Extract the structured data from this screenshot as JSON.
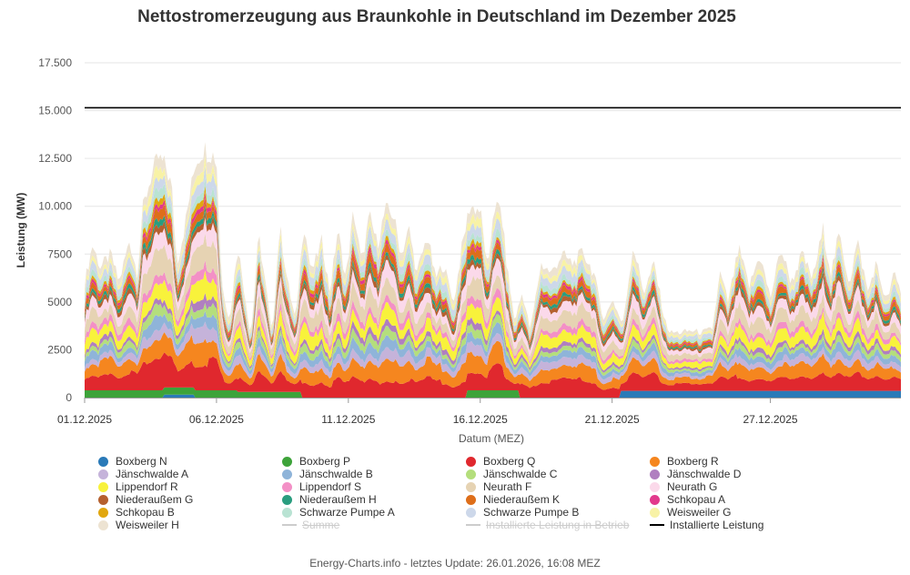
{
  "chart_data": {
    "type": "area",
    "title": "Nettostromerzeugung aus Braunkohle in Deutschland im Dezember 2025",
    "xlabel": "Datum (MEZ)",
    "ylabel": "Leistung (MW)",
    "ylim": [
      0,
      17500
    ],
    "yticks": [
      {
        "value": 0,
        "label": "0"
      },
      {
        "value": 2500,
        "label": "2500"
      },
      {
        "value": 5000,
        "label": "5000"
      },
      {
        "value": 7500,
        "label": "7500"
      },
      {
        "value": 10000,
        "label": "10.000"
      },
      {
        "value": 12500,
        "label": "12.500"
      },
      {
        "value": 15000,
        "label": "15.000"
      },
      {
        "value": 17500,
        "label": "17.500"
      }
    ],
    "xlim": [
      1,
      31.95
    ],
    "xticks": [
      {
        "value": 1,
        "label": "01.12.2025"
      },
      {
        "value": 6,
        "label": "06.12.2025"
      },
      {
        "value": 11,
        "label": "11.12.2025"
      },
      {
        "value": 16,
        "label": "16.12.2025"
      },
      {
        "value": 21,
        "label": "21.12.2025"
      },
      {
        "value": 27,
        "label": "27.12.2025"
      }
    ],
    "grid": true,
    "legend_position": "bottom",
    "installed_capacity": 15150,
    "total_profile": [
      {
        "x": 1.0,
        "y": 6000
      },
      {
        "x": 1.3,
        "y": 8000
      },
      {
        "x": 1.6,
        "y": 6800
      },
      {
        "x": 2.0,
        "y": 7500
      },
      {
        "x": 2.3,
        "y": 6000
      },
      {
        "x": 2.7,
        "y": 8200
      },
      {
        "x": 3.0,
        "y": 6500
      },
      {
        "x": 3.2,
        "y": 9800
      },
      {
        "x": 3.5,
        "y": 11500
      },
      {
        "x": 3.8,
        "y": 12500
      },
      {
        "x": 4.1,
        "y": 12000
      },
      {
        "x": 4.3,
        "y": 11000
      },
      {
        "x": 4.5,
        "y": 7000
      },
      {
        "x": 4.8,
        "y": 9000
      },
      {
        "x": 5.2,
        "y": 12300
      },
      {
        "x": 5.5,
        "y": 13000
      },
      {
        "x": 5.8,
        "y": 12800
      },
      {
        "x": 6.0,
        "y": 12500
      },
      {
        "x": 6.2,
        "y": 6000
      },
      {
        "x": 6.5,
        "y": 4000
      },
      {
        "x": 6.8,
        "y": 8000
      },
      {
        "x": 7.1,
        "y": 5200
      },
      {
        "x": 7.3,
        "y": 3200
      },
      {
        "x": 7.6,
        "y": 8500
      },
      {
        "x": 7.9,
        "y": 5500
      },
      {
        "x": 8.1,
        "y": 3300
      },
      {
        "x": 8.4,
        "y": 9000
      },
      {
        "x": 8.7,
        "y": 6000
      },
      {
        "x": 9.0,
        "y": 4000
      },
      {
        "x": 9.3,
        "y": 9200
      },
      {
        "x": 9.6,
        "y": 6500
      },
      {
        "x": 10.0,
        "y": 8200
      },
      {
        "x": 10.3,
        "y": 5500
      },
      {
        "x": 10.6,
        "y": 8800
      },
      {
        "x": 10.9,
        "y": 6200
      },
      {
        "x": 11.2,
        "y": 9800
      },
      {
        "x": 11.5,
        "y": 7000
      },
      {
        "x": 11.8,
        "y": 9500
      },
      {
        "x": 12.1,
        "y": 8000
      },
      {
        "x": 12.4,
        "y": 9800
      },
      {
        "x": 12.7,
        "y": 9600
      },
      {
        "x": 13.0,
        "y": 7500
      },
      {
        "x": 13.3,
        "y": 8800
      },
      {
        "x": 13.6,
        "y": 6500
      },
      {
        "x": 14.0,
        "y": 8500
      },
      {
        "x": 14.3,
        "y": 6200
      },
      {
        "x": 14.6,
        "y": 7000
      },
      {
        "x": 15.0,
        "y": 5000
      },
      {
        "x": 15.3,
        "y": 7800
      },
      {
        "x": 15.6,
        "y": 10000
      },
      {
        "x": 16.0,
        "y": 9800
      },
      {
        "x": 16.3,
        "y": 6500
      },
      {
        "x": 16.5,
        "y": 10000
      },
      {
        "x": 16.8,
        "y": 9800
      },
      {
        "x": 17.0,
        "y": 7000
      },
      {
        "x": 17.3,
        "y": 4000
      },
      {
        "x": 17.6,
        "y": 5500
      },
      {
        "x": 17.9,
        "y": 3500
      },
      {
        "x": 18.3,
        "y": 7000
      },
      {
        "x": 18.7,
        "y": 6500
      },
      {
        "x": 19.1,
        "y": 7500
      },
      {
        "x": 19.5,
        "y": 7000
      },
      {
        "x": 19.9,
        "y": 7600
      },
      {
        "x": 20.3,
        "y": 6500
      },
      {
        "x": 20.7,
        "y": 4000
      },
      {
        "x": 21.0,
        "y": 5200
      },
      {
        "x": 21.4,
        "y": 3800
      },
      {
        "x": 21.8,
        "y": 8000
      },
      {
        "x": 22.2,
        "y": 5500
      },
      {
        "x": 22.6,
        "y": 7000
      },
      {
        "x": 23.0,
        "y": 4000
      },
      {
        "x": 23.2,
        "y": 3400
      },
      {
        "x": 23.6,
        "y": 3400
      },
      {
        "x": 24.0,
        "y": 3500
      },
      {
        "x": 24.4,
        "y": 3400
      },
      {
        "x": 24.8,
        "y": 3600
      },
      {
        "x": 25.1,
        "y": 6500
      },
      {
        "x": 25.4,
        "y": 5000
      },
      {
        "x": 25.8,
        "y": 7800
      },
      {
        "x": 26.2,
        "y": 5800
      },
      {
        "x": 26.6,
        "y": 7500
      },
      {
        "x": 27.0,
        "y": 5200
      },
      {
        "x": 27.4,
        "y": 7800
      },
      {
        "x": 27.8,
        "y": 6000
      },
      {
        "x": 28.2,
        "y": 7500
      },
      {
        "x": 28.6,
        "y": 6200
      },
      {
        "x": 29.0,
        "y": 8800
      },
      {
        "x": 29.3,
        "y": 6500
      },
      {
        "x": 29.6,
        "y": 8500
      },
      {
        "x": 30.0,
        "y": 6000
      },
      {
        "x": 30.3,
        "y": 8200
      },
      {
        "x": 30.7,
        "y": 5500
      },
      {
        "x": 31.0,
        "y": 7000
      },
      {
        "x": 31.4,
        "y": 5000
      },
      {
        "x": 31.7,
        "y": 6500
      },
      {
        "x": 31.95,
        "y": 5500
      }
    ],
    "series": [
      {
        "name": "Boxberg N",
        "color": "#2a7ab8",
        "segments": [
          {
            "from": 4.0,
            "to": 5.2,
            "value": 150
          },
          {
            "from": 21.3,
            "to": 31.95,
            "value": 350
          }
        ]
      },
      {
        "name": "Boxberg P",
        "color": "#3da33a",
        "segments": [
          {
            "from": 1.0,
            "to": 6.8,
            "value": 380
          },
          {
            "from": 6.8,
            "to": 9.2,
            "value": 300
          },
          {
            "from": 15.5,
            "to": 17.5,
            "value": 380
          }
        ]
      },
      {
        "name": "Boxberg Q",
        "color": "#e0282e",
        "share": 0.12
      },
      {
        "name": "Boxberg R",
        "color": "#f5861f",
        "share": 0.1
      },
      {
        "name": "Jänschwalde A",
        "color": "#c5b3da",
        "share": 0.05
      },
      {
        "name": "Jänschwalde B",
        "color": "#8fb4d9",
        "share": 0.05
      },
      {
        "name": "Jänschwalde C",
        "color": "#b4de7c",
        "share": 0.04
      },
      {
        "name": "Jänschwalde D",
        "color": "#b07fc0",
        "share": 0.03
      },
      {
        "name": "Lippendorf R",
        "color": "#f8f23b",
        "share": 0.08
      },
      {
        "name": "Lippendorf S",
        "color": "#f390c6",
        "share": 0.04
      },
      {
        "name": "Neurath F",
        "color": "#e6d3b3",
        "share": 0.09
      },
      {
        "name": "Neurath G",
        "color": "#fbd9ea",
        "share": 0.08
      },
      {
        "name": "Niederaußem G",
        "color": "#b5602f",
        "share": 0.03
      },
      {
        "name": "Niederaußem H",
        "color": "#2a9d7f",
        "share": 0.025
      },
      {
        "name": "Niederaußem K",
        "color": "#de6e1a",
        "share": 0.04
      },
      {
        "name": "Schkopau A",
        "color": "#e2398c",
        "share": 0.02
      },
      {
        "name": "Schkopau B",
        "color": "#e1a70f",
        "share": 0.02
      },
      {
        "name": "Schwarze Pumpe A",
        "color": "#b9e3d3",
        "share": 0.04
      },
      {
        "name": "Schwarze Pumpe B",
        "color": "#cdd8ea",
        "share": 0.05
      },
      {
        "name": "Weisweiler G",
        "color": "#f8f2a6",
        "share": 0.04
      },
      {
        "name": "Weisweiler H",
        "color": "#ede3d2",
        "share": 0.05
      }
    ],
    "legend": [
      {
        "name": "Boxberg N",
        "color": "#2a7ab8",
        "marker": "dot",
        "hidden": false
      },
      {
        "name": "Boxberg P",
        "color": "#3da33a",
        "marker": "dot",
        "hidden": false
      },
      {
        "name": "Boxberg Q",
        "color": "#e0282e",
        "marker": "dot",
        "hidden": false
      },
      {
        "name": "Boxberg R",
        "color": "#f5861f",
        "marker": "dot",
        "hidden": false
      },
      {
        "name": "Jänschwalde A",
        "color": "#c5b3da",
        "marker": "dot",
        "hidden": false
      },
      {
        "name": "Jänschwalde B",
        "color": "#8fb4d9",
        "marker": "dot",
        "hidden": false
      },
      {
        "name": "Jänschwalde C",
        "color": "#b4de7c",
        "marker": "dot",
        "hidden": false
      },
      {
        "name": "Jänschwalde D",
        "color": "#b07fc0",
        "marker": "dot",
        "hidden": false
      },
      {
        "name": "Lippendorf R",
        "color": "#f8f23b",
        "marker": "dot",
        "hidden": false
      },
      {
        "name": "Lippendorf S",
        "color": "#f390c6",
        "marker": "dot",
        "hidden": false
      },
      {
        "name": "Neurath F",
        "color": "#e6d3b3",
        "marker": "dot",
        "hidden": false
      },
      {
        "name": "Neurath G",
        "color": "#fbd9ea",
        "marker": "dot",
        "hidden": false
      },
      {
        "name": "Niederaußem G",
        "color": "#b5602f",
        "marker": "dot",
        "hidden": false
      },
      {
        "name": "Niederaußem H",
        "color": "#2a9d7f",
        "marker": "dot",
        "hidden": false
      },
      {
        "name": "Niederaußem K",
        "color": "#de6e1a",
        "marker": "dot",
        "hidden": false
      },
      {
        "name": "Schkopau A",
        "color": "#e2398c",
        "marker": "dot",
        "hidden": false
      },
      {
        "name": "Schkopau B",
        "color": "#e1a70f",
        "marker": "dot",
        "hidden": false
      },
      {
        "name": "Schwarze Pumpe A",
        "color": "#b9e3d3",
        "marker": "dot",
        "hidden": false
      },
      {
        "name": "Schwarze Pumpe B",
        "color": "#cdd8ea",
        "marker": "dot",
        "hidden": false
      },
      {
        "name": "Weisweiler G",
        "color": "#f8f2a6",
        "marker": "dot",
        "hidden": false
      },
      {
        "name": "Weisweiler H",
        "color": "#ede3d2",
        "marker": "dot",
        "hidden": false
      },
      {
        "name": "Summe",
        "color": "#cccccc",
        "marker": "line",
        "hidden": true
      },
      {
        "name": "Installierte Leistung in Betrieb",
        "color": "#cccccc",
        "marker": "line",
        "hidden": true
      },
      {
        "name": "Installierte Leistung",
        "color": "#000000",
        "marker": "line",
        "hidden": false
      }
    ]
  },
  "footer": "Energy-Charts.info - letztes Update: 26.01.2026, 16:08 MEZ"
}
